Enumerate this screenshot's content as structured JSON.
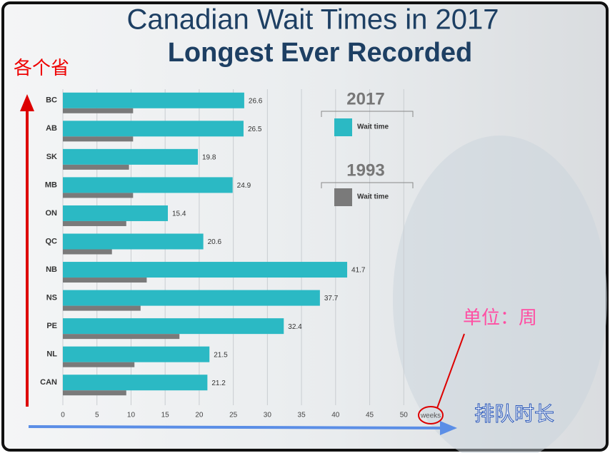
{
  "chart_data": {
    "type": "hbar",
    "title": "Canadian Wait Times in 2017",
    "subtitle": "Longest Ever Recorded",
    "categories": [
      "BC",
      "AB",
      "SK",
      "MB",
      "ON",
      "QC",
      "NB",
      "NS",
      "PE",
      "NL",
      "CAN"
    ],
    "series": [
      {
        "name": "Wait time",
        "year": "2017",
        "color": "#2bb9c4",
        "values": [
          26.6,
          26.5,
          19.8,
          24.9,
          15.4,
          20.6,
          41.7,
          37.7,
          32.4,
          21.5,
          21.2
        ]
      },
      {
        "name": "Wait time",
        "year": "1993",
        "color": "#7a7a7a",
        "values": [
          10.3,
          10.3,
          9.7,
          10.3,
          9.3,
          7.2,
          12.3,
          11.4,
          17.1,
          10.5,
          9.3
        ]
      }
    ],
    "xlabel": "weeks",
    "xlim": [
      0,
      55
    ],
    "xticks": [
      0,
      5,
      10,
      15,
      20,
      25,
      30,
      35,
      40,
      45,
      50
    ],
    "grid": true,
    "annotations": {
      "y_axis_note": "各个省",
      "unit_note": "单位：周",
      "x_axis_note": "排队时长"
    }
  }
}
